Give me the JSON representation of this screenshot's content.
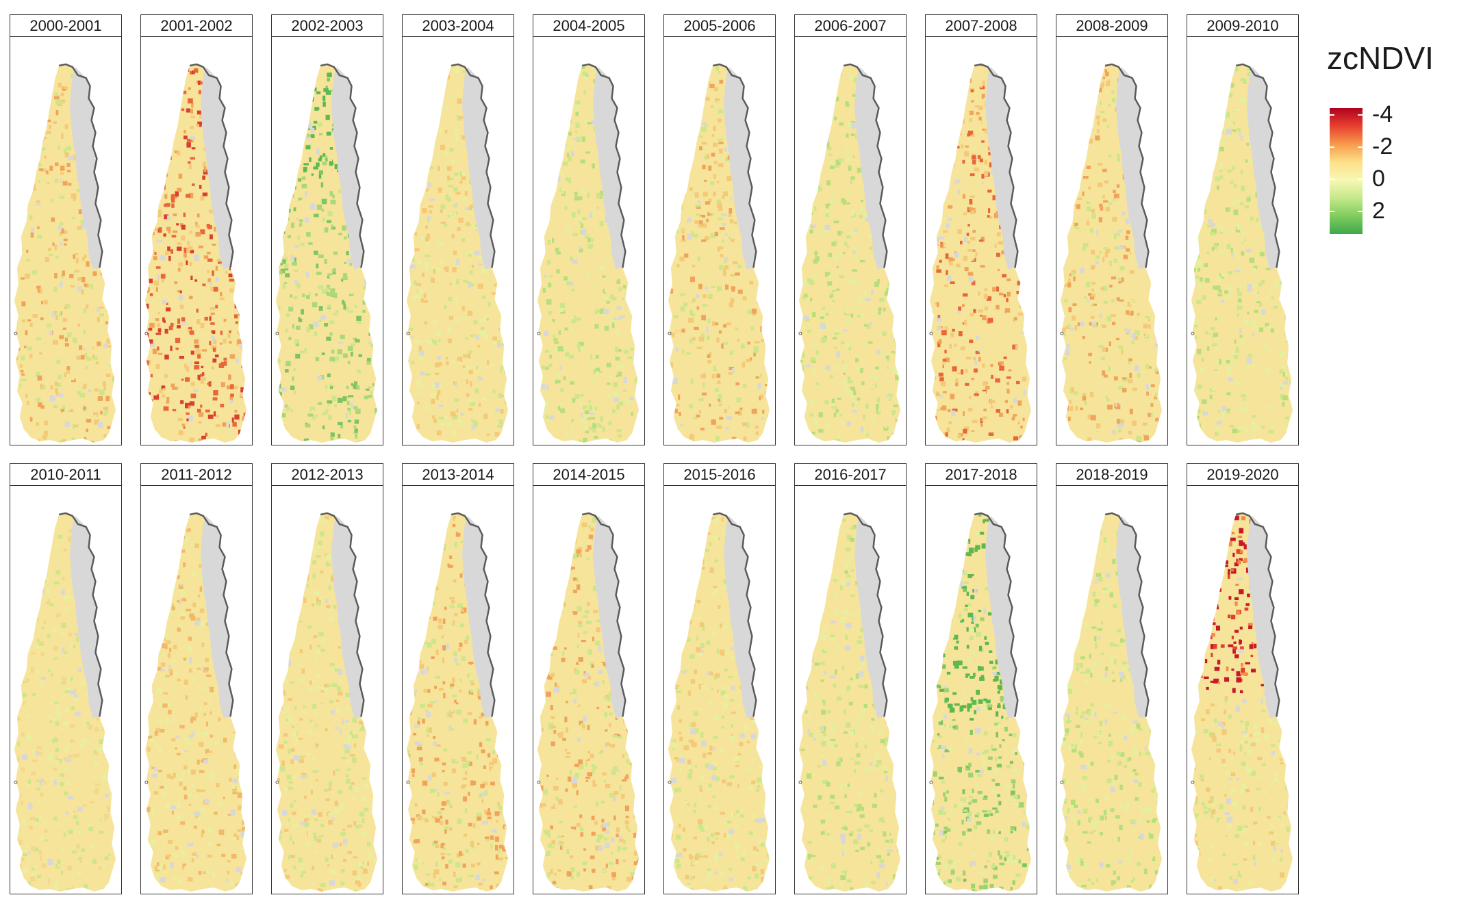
{
  "legend": {
    "title": "zcNDVI",
    "labels": [
      "-4",
      "-2",
      "0",
      "2"
    ],
    "gradient": [
      "#b2001f",
      "#e8402f",
      "#f79a4b",
      "#fde08a",
      "#f7f8b4",
      "#c5e88a",
      "#7fcc5e",
      "#3ea84a"
    ]
  },
  "colors": {
    "land_gray": "#d8d8d8",
    "border": "#5a5a5a",
    "very_negative": "#c8192b",
    "negative": "#f08a46",
    "neutral": "#f6e49a",
    "positive": "#cde68a",
    "very_positive": "#5cb84f"
  },
  "panels": [
    {
      "label": "2000-2001",
      "anomaly": "negative-south"
    },
    {
      "label": "2001-2002",
      "anomaly": "strong-negative-south"
    },
    {
      "label": "2002-2003",
      "anomaly": "positive-north"
    },
    {
      "label": "2003-2004",
      "anomaly": "mixed"
    },
    {
      "label": "2004-2005",
      "anomaly": "slightly-positive"
    },
    {
      "label": "2005-2006",
      "anomaly": "mixed-north-negative"
    },
    {
      "label": "2006-2007",
      "anomaly": "slightly-positive"
    },
    {
      "label": "2007-2008",
      "anomaly": "negative"
    },
    {
      "label": "2008-2009",
      "anomaly": "negative-south"
    },
    {
      "label": "2009-2010",
      "anomaly": "positive"
    },
    {
      "label": "2010-2011",
      "anomaly": "neutral"
    },
    {
      "label": "2011-2012",
      "anomaly": "neutral-negative"
    },
    {
      "label": "2012-2013",
      "anomaly": "mixed"
    },
    {
      "label": "2013-2014",
      "anomaly": "mixed-negative"
    },
    {
      "label": "2014-2015",
      "anomaly": "mixed-negative"
    },
    {
      "label": "2015-2016",
      "anomaly": "mixed"
    },
    {
      "label": "2016-2017",
      "anomaly": "positive"
    },
    {
      "label": "2017-2018",
      "anomaly": "strong-positive-north"
    },
    {
      "label": "2018-2019",
      "anomaly": "positive"
    },
    {
      "label": "2019-2020",
      "anomaly": "strong-negative-north"
    }
  ]
}
